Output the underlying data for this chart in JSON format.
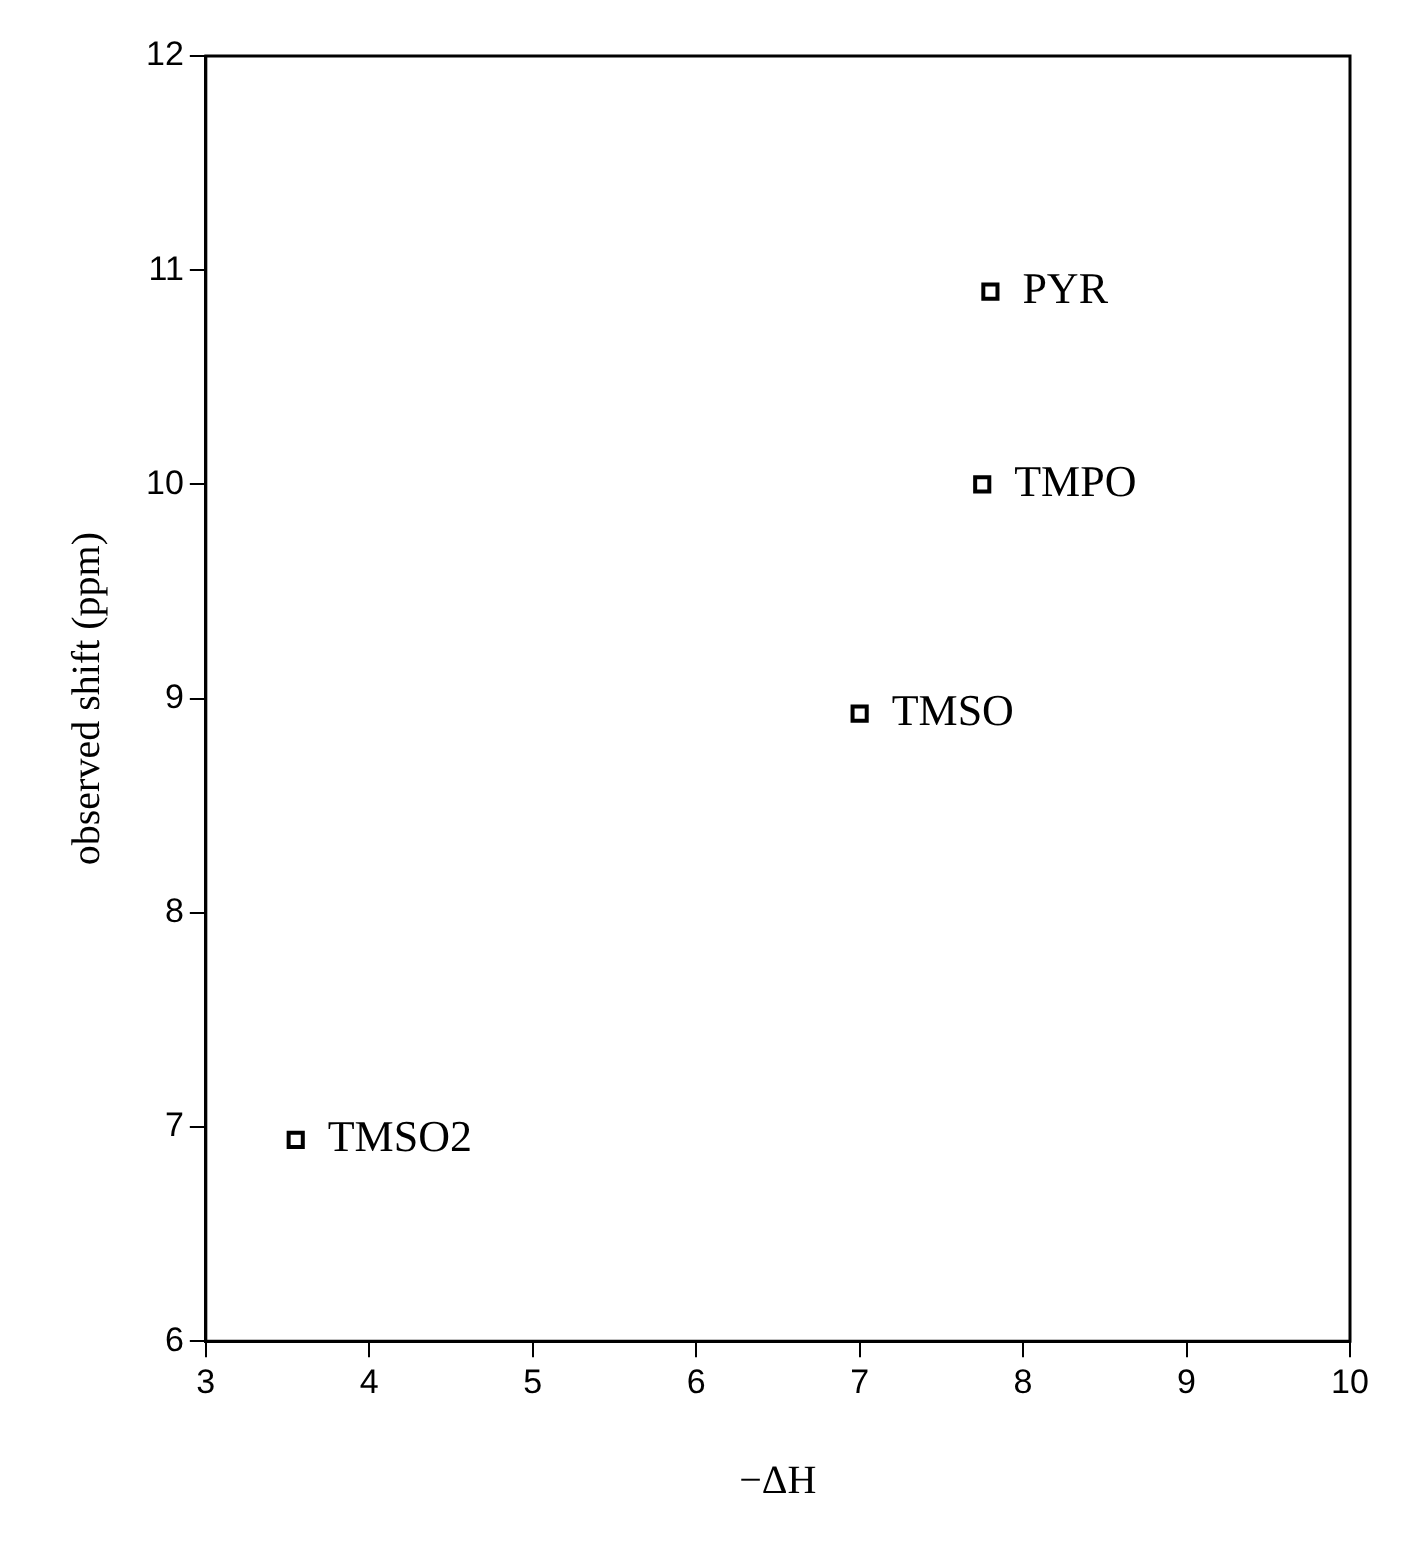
{
  "chart_data": {
    "type": "scatter",
    "xlabel": "−ΔH",
    "ylabel": "observed shift (ppm)",
    "x": [
      7.8,
      7.75,
      7.0,
      3.55
    ],
    "values": [
      10.9,
      10.0,
      8.93,
      6.94
    ],
    "color": "#000000",
    "marker": "square",
    "grid": false,
    "legend": false,
    "xlim": [
      3,
      10
    ],
    "xticks": [
      3,
      4,
      5,
      6,
      7,
      8,
      9,
      10
    ],
    "ylim": [
      6,
      12
    ],
    "yticks": [
      6,
      7,
      8,
      9,
      10,
      11,
      12
    ],
    "annotations": [
      {
        "text": "PYR",
        "x": 7.8,
        "y": 10.9
      },
      {
        "text": "TMPO",
        "x": 7.75,
        "y": 10.0
      },
      {
        "text": "TMSO",
        "x": 7.0,
        "y": 8.93
      },
      {
        "text": "TMSO2",
        "x": 3.55,
        "y": 6.94
      }
    ]
  }
}
